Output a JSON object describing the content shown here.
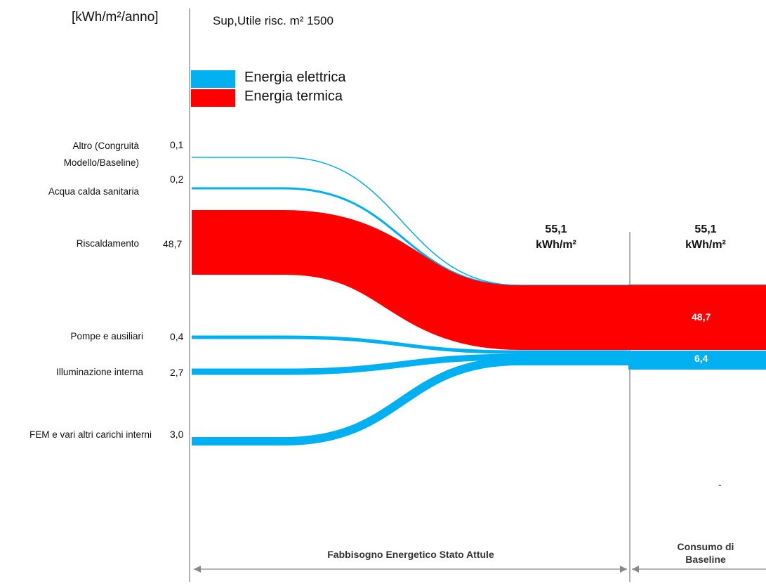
{
  "header": {
    "unit_label": "[kWh/m²/anno]",
    "surface_label": "Sup,Utile risc. m² 1500"
  },
  "colors": {
    "electric": "#00b0f0",
    "thermal": "#ff0000",
    "axis": "#888888"
  },
  "chart_data": {
    "type": "sankey",
    "legend": [
      {
        "name": "Energia elettrica",
        "color": "#00b0f0"
      },
      {
        "name": "Energia termica",
        "color": "#ff0000"
      }
    ],
    "flows": [
      {
        "label": "Altro (Congruità\nModello/Baseline)",
        "value": 0.1,
        "value_label": "0,1",
        "type": "electric"
      },
      {
        "label": "Acqua calda sanitaria",
        "value": 0.2,
        "value_label": "0,2",
        "type": "electric"
      },
      {
        "label": "Riscaldamento",
        "value": 48.7,
        "value_label": "48,7",
        "type": "thermal"
      },
      {
        "label": "Pompe e ausiliari",
        "value": 0.4,
        "value_label": "0,4",
        "type": "electric"
      },
      {
        "label": "Illuminazione interna",
        "value": 2.7,
        "value_label": "2,7",
        "type": "electric"
      },
      {
        "label": "FEM e vari altri carichi interni",
        "value": 3.0,
        "value_label": "3,0",
        "type": "electric"
      }
    ],
    "totals": [
      {
        "value": "55,1",
        "unit": "kWh/m²"
      },
      {
        "value": "55,1",
        "unit": "kWh/m²"
      }
    ],
    "baseline_bars": [
      {
        "value": 48.7,
        "value_label": "48,7",
        "type": "thermal"
      },
      {
        "value": 6.4,
        "value_label": "6,4",
        "type": "electric"
      }
    ],
    "stray_mark": "-",
    "sections": [
      {
        "label": "Fabbisogno Energetico Stato Attule"
      },
      {
        "label": "Consumo di\nBaseline"
      }
    ]
  }
}
